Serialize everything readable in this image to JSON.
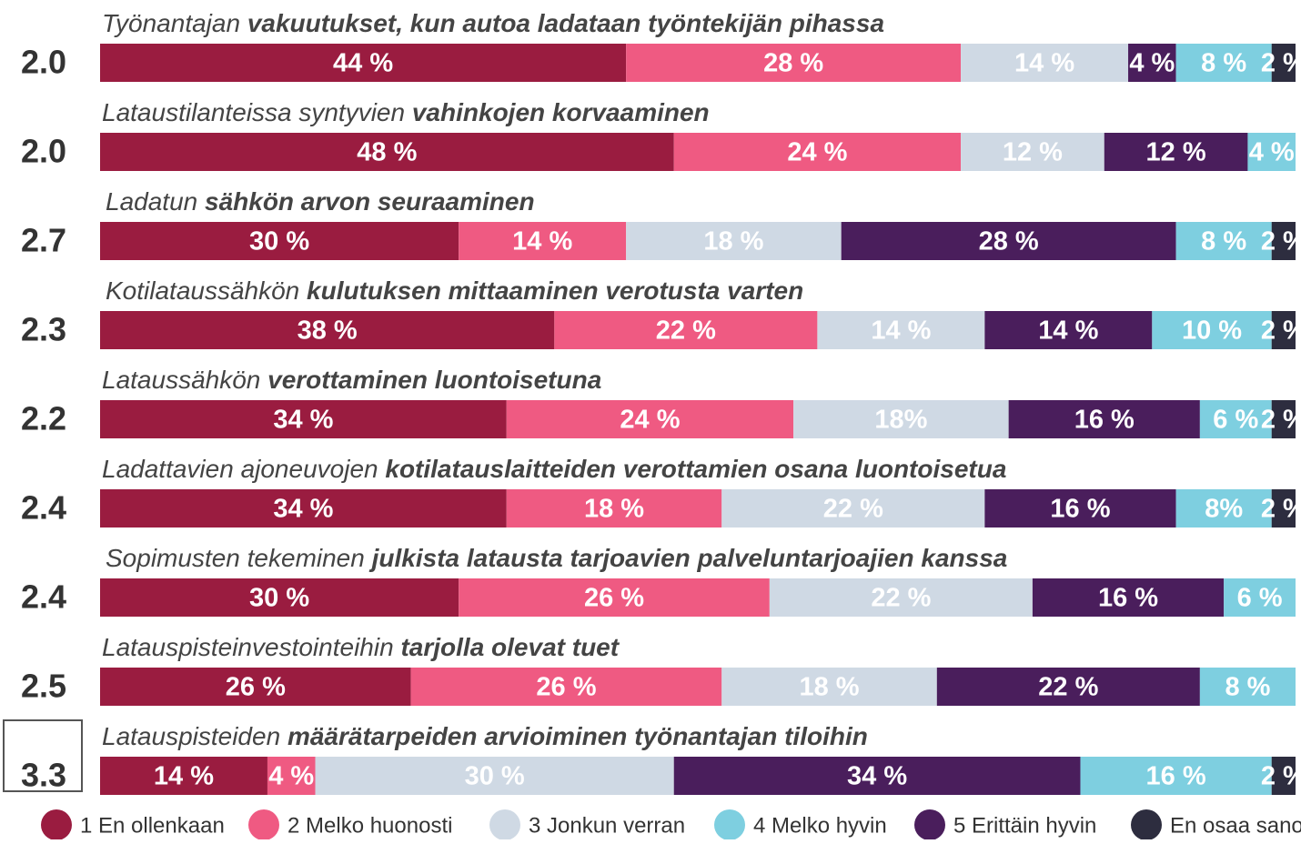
{
  "chart_data": {
    "type": "stacked_bar_horizontal",
    "rows": [
      {
        "title_normal": "Työnantajan ",
        "title_bold": "vakuutukset, kun autoa ladataan työntekijän pihassa",
        "score": "2.0"
      },
      {
        "title_normal": "Lataustilanteissa syntyvien ",
        "title_bold": "vahinkojen korvaaminen",
        "score": "2.0"
      },
      {
        "title_normal": "Ladatun ",
        "title_bold": "sähkön arvon seuraaminen",
        "score": "2.7"
      },
      {
        "title_normal": "Kotilataussähkön ",
        "title_bold": "kulutuksen mittaaminen verotusta varten",
        "score": "2.3"
      },
      {
        "title_normal": "Lataussähkön ",
        "title_bold": "verottaminen luontoisetuna",
        "score": "2.2"
      },
      {
        "title_normal": "Ladattavien ajoneuvojen ",
        "title_bold": "kotilatauslaitteiden verottamien osana luontoisetua",
        "score": "2.4"
      },
      {
        "title_normal": "Sopimusten tekeminen ",
        "title_bold": "julkista latausta tarjoavien palveluntarjoajien kanssa",
        "score": "2.4"
      },
      {
        "title_normal": "Latauspisteinvestointeihin ",
        "title_bold": "tarjolla olevat tuet",
        "score": "2.5"
      },
      {
        "title_normal": "Latauspisteiden ",
        "title_bold": "määrätarpeiden arvioiminen työnantajan tiloihin",
        "score": "3.3"
      }
    ],
    "series": [
      {
        "name": "1 En ollenkaan",
        "color": "#9a1c40",
        "values": [
          44,
          48,
          30,
          38,
          34,
          34,
          30,
          26,
          14
        ],
        "value_labels": [
          "44 %",
          "48 %",
          "30 %",
          "38 %",
          "34 %",
          "34 %",
          "30 %",
          "26 %",
          "14 %"
        ]
      },
      {
        "name": "2 Melko huonosti",
        "color": "#ef5a82",
        "values": [
          28,
          24,
          14,
          22,
          24,
          18,
          26,
          26,
          4
        ],
        "value_labels": [
          "28 %",
          "24 %",
          "14 %",
          "22 %",
          "24 %",
          "18 %",
          "26 %",
          "26 %",
          "4 %"
        ]
      },
      {
        "name": "3 Jonkun verran",
        "color": "#cfd9e4",
        "values": [
          14,
          12,
          18,
          14,
          18,
          22,
          22,
          18,
          30
        ],
        "value_labels": [
          "14 %",
          "12 %",
          "18 %",
          "14 %",
          "18%",
          "22 %",
          "22 %",
          "18 %",
          "30 %"
        ]
      },
      {
        "name": "4 Melko hyvin",
        "color": "#7ecfe0",
        "values": [
          8,
          4,
          8,
          10,
          6,
          8,
          6,
          8,
          16
        ],
        "value_labels": [
          "8 %",
          "4 %",
          "8 %",
          "10 %",
          "6 %",
          "8%",
          "6 %",
          "8 %",
          "16 %"
        ]
      },
      {
        "name": "5 Erittäin hyvin",
        "color": "#4a1e5c",
        "values": [
          4,
          12,
          28,
          14,
          16,
          16,
          16,
          22,
          34
        ],
        "value_labels": [
          "4 %",
          "12 %",
          "28 %",
          "14 %",
          "16 %",
          "16 %",
          "16 %",
          "22 %",
          "34 %"
        ]
      },
      {
        "name": "En osaa sanoa",
        "color": "#2d2d3f",
        "values": [
          2,
          null,
          2,
          2,
          2,
          2,
          null,
          null,
          2
        ],
        "value_labels": [
          "2 %",
          null,
          "2 %",
          "2 %",
          "2 %",
          "2 %",
          null,
          null,
          "2 %"
        ]
      }
    ],
    "xlim": [
      0,
      100
    ]
  }
}
